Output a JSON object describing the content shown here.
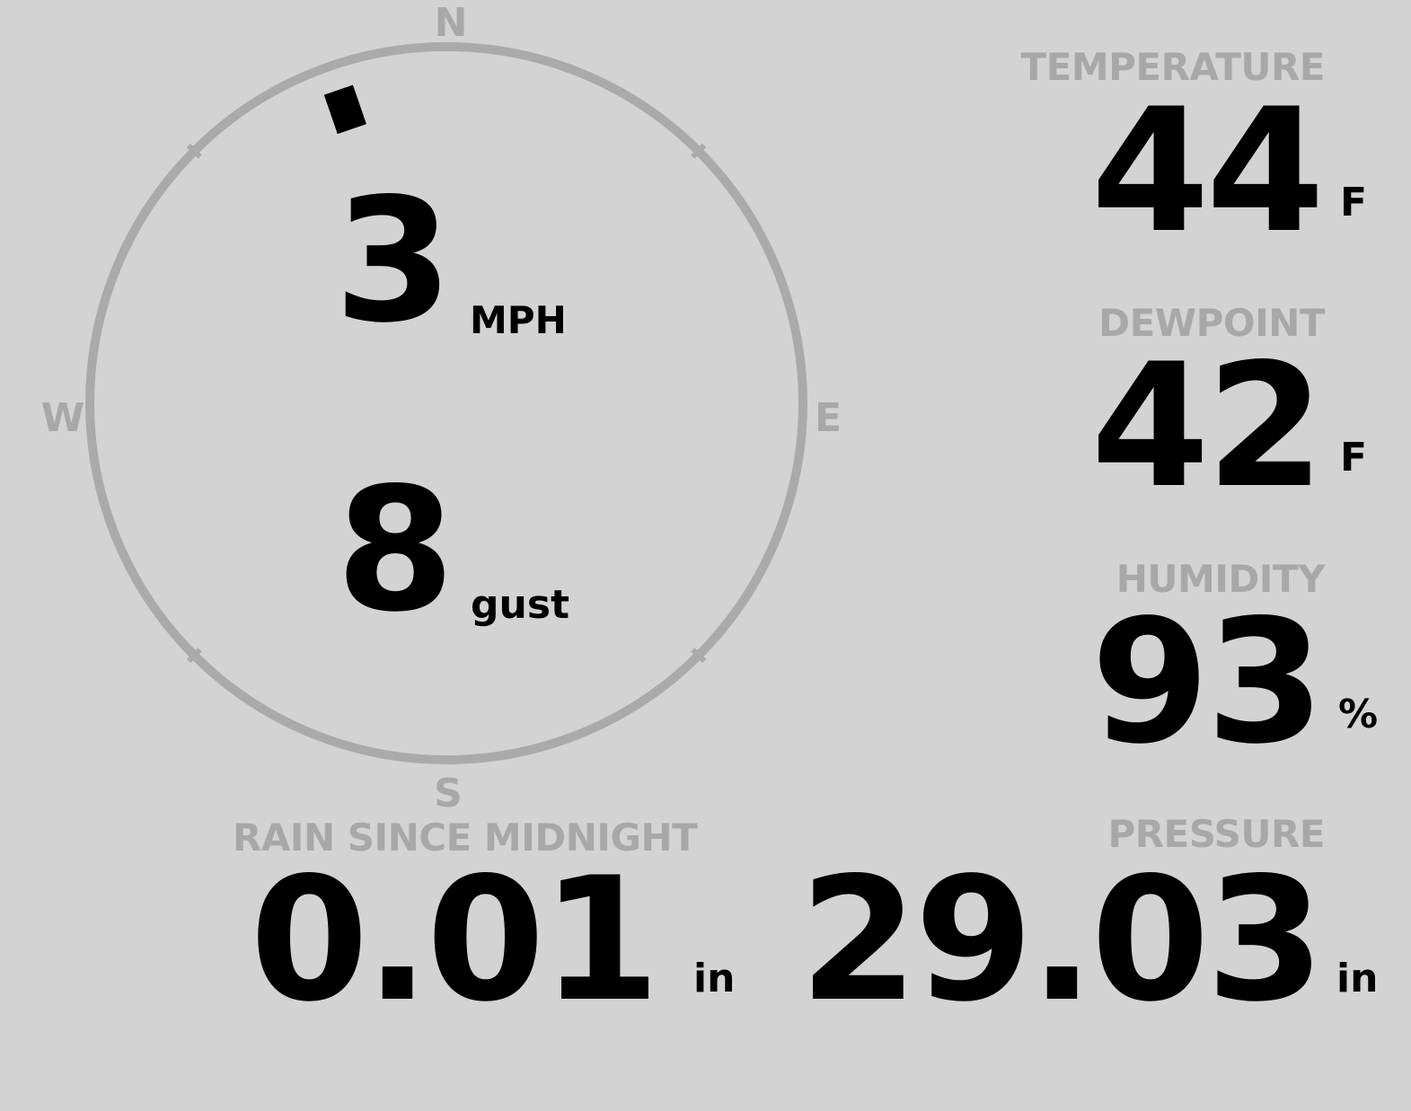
{
  "wind": {
    "speed": "3",
    "speed_unit": "MPH",
    "gust": "8",
    "gust_label": "gust",
    "direction_degrees": 341,
    "cardinals": {
      "n": "N",
      "e": "E",
      "s": "S",
      "w": "W"
    }
  },
  "temperature": {
    "label": "TEMPERATURE",
    "value": "44",
    "unit": "F"
  },
  "dewpoint": {
    "label": "DEWPOINT",
    "value": "42",
    "unit": "F"
  },
  "humidity": {
    "label": "HUMIDITY",
    "value": "93",
    "unit": "%"
  },
  "rain": {
    "label": "RAIN SINCE MIDNIGHT",
    "value": "0.01",
    "unit": "in"
  },
  "pressure": {
    "label": "PRESSURE",
    "value": "29.03",
    "unit": "in"
  },
  "colors": {
    "background": "#d3d3d3",
    "muted": "#a8a8a8",
    "value": "#000000"
  }
}
